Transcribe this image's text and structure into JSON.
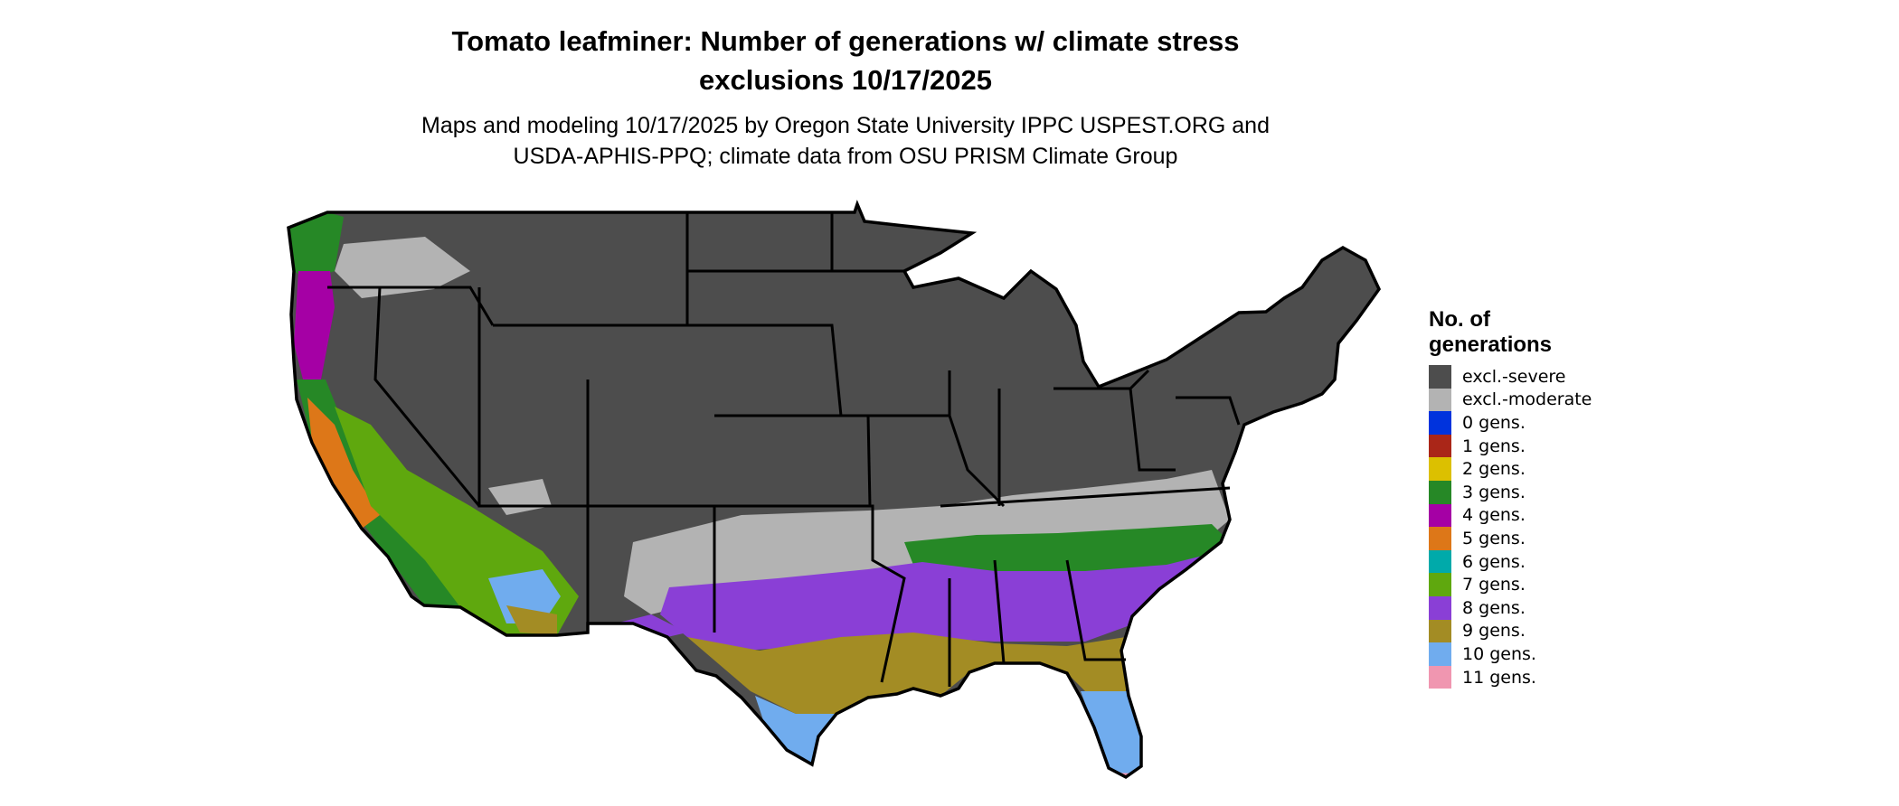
{
  "title": {
    "line1": "Tomato leafminer: Number of generations w/ climate stress",
    "line2": "exclusions 10/17/2025"
  },
  "subtitle": {
    "line1": "Maps and modeling 10/17/2025 by Oregon State University IPPC USPEST.ORG and",
    "line2": "USDA-APHIS-PPQ; climate data from OSU PRISM Climate Group"
  },
  "legend": {
    "title_line1": "No. of",
    "title_line2": "generations",
    "items": [
      {
        "label": "excl.-severe",
        "color": "#4d4d4d"
      },
      {
        "label": "excl.-moderate",
        "color": "#b3b3b3"
      },
      {
        "label": "0 gens.",
        "color": "#0033dd"
      },
      {
        "label": "1 gens.",
        "color": "#aa2618"
      },
      {
        "label": "2 gens.",
        "color": "#dcc000"
      },
      {
        "label": "3 gens.",
        "color": "#268826"
      },
      {
        "label": "4 gens.",
        "color": "#a500a5"
      },
      {
        "label": "5 gens.",
        "color": "#dd7718"
      },
      {
        "label": "6 gens.",
        "color": "#00aaaa"
      },
      {
        "label": "7 gens.",
        "color": "#5fa80e"
      },
      {
        "label": "8 gens.",
        "color": "#8a3fd6"
      },
      {
        "label": "9 gens.",
        "color": "#a38c24"
      },
      {
        "label": "10 gens.",
        "color": "#70acee"
      },
      {
        "label": "11 gens.",
        "color": "#f096b0"
      }
    ]
  }
}
